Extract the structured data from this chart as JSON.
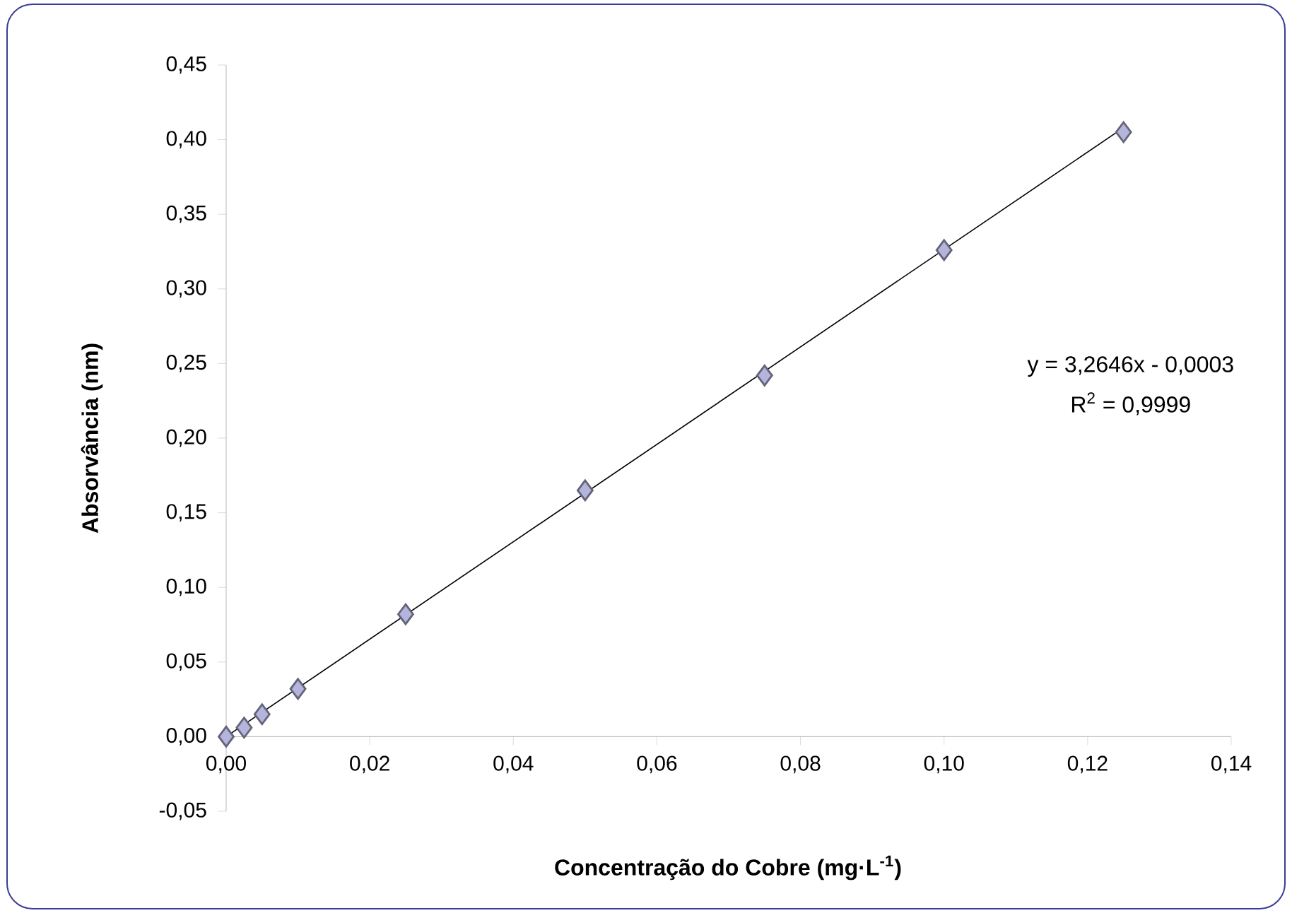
{
  "chart_data": {
    "type": "scatter",
    "xlabel": "Concentração do Cobre (mg·L$^{-1}$)",
    "ylabel": "Absorvância (nm)",
    "annotations": [
      "y = 3,2646x - 0,0003",
      "R$^{2}$ = 0,9999"
    ],
    "x": [
      0,
      0.0025,
      0.005,
      0.01,
      0.025,
      0.05,
      0.075,
      0.1,
      0.125
    ],
    "series": [
      {
        "color": "#b4b4dc",
        "marker": "diamond",
        "values": [
          0,
          0.006,
          0.015,
          0.032,
          0.082,
          0.165,
          0.242,
          0.326,
          0.405
        ]
      },
      {
        "type": "line",
        "color": "#000000",
        "marker": "none",
        "line_style": "solid",
        "x": [
          0,
          0.125
        ],
        "values": [
          0,
          0.408
        ]
      }
    ],
    "xlim": [
      0,
      0.14
    ],
    "ylim": [
      -0.05,
      0.45
    ],
    "xticks": [
      {
        "value": 0,
        "label": "0,00"
      },
      {
        "value": 0.02,
        "label": "0,02"
      },
      {
        "value": 0.04,
        "label": "0,04"
      },
      {
        "value": 0.06,
        "label": "0,06"
      },
      {
        "value": 0.08,
        "label": "0,08"
      },
      {
        "value": 0.1,
        "label": "0,10"
      },
      {
        "value": 0.12,
        "label": "0,12"
      },
      {
        "value": 0.14,
        "label": "0,14"
      }
    ],
    "yticks": [
      {
        "value": -0.05,
        "label": "-0,05"
      },
      {
        "value": 0,
        "label": "0,00"
      },
      {
        "value": 0.05,
        "label": "0,05"
      },
      {
        "value": 0.1,
        "label": "0,10"
      },
      {
        "value": 0.15,
        "label": "0,15"
      },
      {
        "value": 0.2,
        "label": "0,20"
      },
      {
        "value": 0.25,
        "label": "0,25"
      },
      {
        "value": 0.3,
        "label": "0,30"
      },
      {
        "value": 0.35,
        "label": "0,35"
      },
      {
        "value": 0.4,
        "label": "0,40"
      },
      {
        "value": 0.45,
        "label": "0,45"
      }
    ],
    "grid": false
  }
}
